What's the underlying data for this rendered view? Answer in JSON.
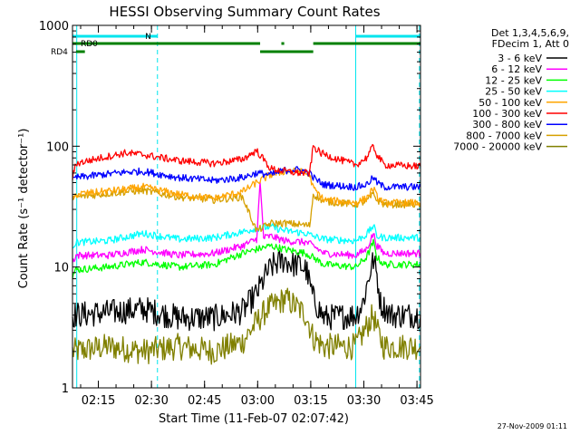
{
  "chart_data": {
    "type": "line",
    "title": "HESSI Observing Summary Count Rates",
    "xlabel": "Start Time (11-Feb-07 02:07:42)",
    "ylabel": "Count Rate (s⁻¹ detector⁻¹)",
    "yscale": "log",
    "ylim": [
      1,
      1000
    ],
    "y_ticks": [
      {
        "value": 1,
        "label": "1"
      },
      {
        "value": 10,
        "label": "10"
      },
      {
        "value": 100,
        "label": "100"
      },
      {
        "value": 1000,
        "label": "1000"
      }
    ],
    "x_ticks_minutes": [
      7.3,
      22.3,
      37.3,
      52.3,
      67.3,
      82.3,
      97.3
    ],
    "x_tick_labels": [
      "02:15",
      "02:30",
      "02:45",
      "03:00",
      "03:15",
      "03:30",
      "03:45"
    ],
    "xlim_minutes": [
      0,
      98.3
    ],
    "grid": false,
    "legend_position": "right",
    "legend_header": [
      "Det 1,3,4,5,6,9,",
      "FDecim 1, Att 0"
    ],
    "timestamp": "27-Nov-2009 01:11",
    "flag_labels": [
      "RD0",
      "RD4",
      "N"
    ],
    "series": [
      {
        "name": "3 - 6 keV",
        "color": "#000000",
        "points": [
          [
            0,
            4.0
          ],
          [
            10,
            4.2
          ],
          [
            20,
            4.5
          ],
          [
            30,
            3.8
          ],
          [
            40,
            3.8
          ],
          [
            48,
            4.3
          ],
          [
            52,
            6.0
          ],
          [
            55,
            9.0
          ],
          [
            57,
            10.5
          ],
          [
            58.5,
            11.0
          ],
          [
            60,
            11.5
          ],
          [
            62,
            10.5
          ],
          [
            64,
            10.5
          ],
          [
            66,
            9.5
          ],
          [
            68,
            5.5
          ],
          [
            71,
            3.8
          ],
          [
            80,
            4.0
          ],
          [
            82,
            5.0
          ],
          [
            84,
            9.0
          ],
          [
            85,
            11.5
          ],
          [
            86,
            8.5
          ],
          [
            87,
            5.0
          ],
          [
            90,
            4.0
          ],
          [
            98.3,
            4.0
          ]
        ]
      },
      {
        "name": "6 - 12 keV",
        "color": "#ff00ff",
        "points": [
          [
            0,
            11.0
          ],
          [
            1,
            12.5
          ],
          [
            10,
            12.5
          ],
          [
            20,
            14.0
          ],
          [
            30,
            12.5
          ],
          [
            40,
            13.0
          ],
          [
            48,
            15.0
          ],
          [
            52,
            17.0
          ],
          [
            53,
            50.0
          ],
          [
            54,
            17.5
          ],
          [
            56,
            18.0
          ],
          [
            60,
            16.5
          ],
          [
            66,
            16.0
          ],
          [
            68,
            15.0
          ],
          [
            71,
            13.0
          ],
          [
            80,
            12.5
          ],
          [
            83,
            14.0
          ],
          [
            85,
            19.0
          ],
          [
            86,
            15.0
          ],
          [
            88,
            13.0
          ],
          [
            98.3,
            13.0
          ]
        ]
      },
      {
        "name": "12 - 25 keV",
        "color": "#00ff00",
        "points": [
          [
            0,
            8.5
          ],
          [
            1,
            9.5
          ],
          [
            10,
            10.0
          ],
          [
            20,
            11.0
          ],
          [
            30,
            10.0
          ],
          [
            40,
            10.5
          ],
          [
            48,
            13.0
          ],
          [
            52,
            14.0
          ],
          [
            56,
            15.0
          ],
          [
            60,
            14.0
          ],
          [
            66,
            13.0
          ],
          [
            68,
            12.0
          ],
          [
            71,
            10.5
          ],
          [
            80,
            10.0
          ],
          [
            83,
            12.0
          ],
          [
            85,
            16.0
          ],
          [
            86,
            12.0
          ],
          [
            88,
            10.5
          ],
          [
            98.3,
            10.5
          ]
        ]
      },
      {
        "name": "25 - 50 keV",
        "color": "#00ffff",
        "points": [
          [
            0,
            15.0
          ],
          [
            1,
            16.0
          ],
          [
            10,
            16.5
          ],
          [
            20,
            19.0
          ],
          [
            30,
            17.0
          ],
          [
            40,
            17.5
          ],
          [
            48,
            19.5
          ],
          [
            52,
            21.0
          ],
          [
            56,
            21.5
          ],
          [
            60,
            20.0
          ],
          [
            66,
            19.0
          ],
          [
            68,
            18.0
          ],
          [
            71,
            17.0
          ],
          [
            80,
            16.5
          ],
          [
            83,
            18.5
          ],
          [
            85,
            22.0
          ],
          [
            86,
            18.0
          ],
          [
            88,
            17.5
          ],
          [
            98.3,
            17.5
          ]
        ]
      },
      {
        "name": "50 - 100 keV",
        "color": "#ffa500",
        "points": [
          [
            0,
            35.0
          ],
          [
            1,
            40.0
          ],
          [
            8,
            42.0
          ],
          [
            15,
            44.0
          ],
          [
            20,
            46.0
          ],
          [
            30,
            40.0
          ],
          [
            40,
            37.0
          ],
          [
            48,
            42.0
          ],
          [
            52,
            50.0
          ],
          [
            56,
            58.0
          ],
          [
            60,
            62.0
          ],
          [
            64,
            62.0
          ],
          [
            67,
            58.0
          ],
          [
            68,
            45.0
          ],
          [
            71,
            36.0
          ],
          [
            80,
            34.0
          ],
          [
            83,
            37.0
          ],
          [
            85,
            45.0
          ],
          [
            86,
            38.0
          ],
          [
            88,
            34.0
          ],
          [
            98.3,
            34.0
          ]
        ]
      },
      {
        "name": "100 - 300 keV",
        "color": "#ff0000",
        "points": [
          [
            0,
            55.0
          ],
          [
            1,
            72.0
          ],
          [
            8,
            80.0
          ],
          [
            15,
            88.0
          ],
          [
            20,
            85.0
          ],
          [
            30,
            76.0
          ],
          [
            40,
            72.0
          ],
          [
            48,
            78.0
          ],
          [
            52,
            92.0
          ],
          [
            56,
            65.0
          ],
          [
            60,
            62.0
          ],
          [
            64,
            60.0
          ],
          [
            67,
            60.0
          ],
          [
            68,
            100.0
          ],
          [
            70,
            88.0
          ],
          [
            75,
            78.0
          ],
          [
            80,
            70.0
          ],
          [
            83,
            80.0
          ],
          [
            85,
            100.0
          ],
          [
            86,
            85.0
          ],
          [
            88,
            70.0
          ],
          [
            98.3,
            68.0
          ]
        ]
      },
      {
        "name": "300 - 800 keV",
        "color": "#0000ff",
        "points": [
          [
            0,
            52.0
          ],
          [
            1,
            55.0
          ],
          [
            8,
            58.0
          ],
          [
            15,
            61.0
          ],
          [
            20,
            62.0
          ],
          [
            30,
            55.0
          ],
          [
            40,
            52.0
          ],
          [
            48,
            55.0
          ],
          [
            52,
            60.0
          ],
          [
            56,
            58.0
          ],
          [
            60,
            63.0
          ],
          [
            64,
            64.0
          ],
          [
            67,
            60.0
          ],
          [
            68,
            55.0
          ],
          [
            71,
            48.0
          ],
          [
            80,
            46.0
          ],
          [
            83,
            48.0
          ],
          [
            85,
            55.0
          ],
          [
            86,
            50.0
          ],
          [
            88,
            46.0
          ],
          [
            98.3,
            46.0
          ]
        ]
      },
      {
        "name": "800 - 7000 keV",
        "color": "#d6a000",
        "points": [
          [
            0,
            35.0
          ],
          [
            1,
            38.0
          ],
          [
            8,
            40.0
          ],
          [
            15,
            42.0
          ],
          [
            20,
            43.0
          ],
          [
            30,
            38.0
          ],
          [
            40,
            36.0
          ],
          [
            48,
            38.0
          ],
          [
            52,
            20.0
          ],
          [
            56,
            23.0
          ],
          [
            60,
            23.0
          ],
          [
            64,
            22.5
          ],
          [
            67,
            22.0
          ],
          [
            68,
            40.0
          ],
          [
            71,
            35.0
          ],
          [
            80,
            33.0
          ],
          [
            83,
            35.0
          ],
          [
            85,
            40.0
          ],
          [
            86,
            36.0
          ],
          [
            88,
            33.0
          ],
          [
            98.3,
            33.0
          ]
        ]
      },
      {
        "name": "7000 - 20000 keV",
        "color": "#808000",
        "points": [
          [
            0,
            2.0
          ],
          [
            10,
            2.2
          ],
          [
            20,
            2.0
          ],
          [
            30,
            2.2
          ],
          [
            40,
            2.0
          ],
          [
            48,
            2.4
          ],
          [
            52,
            3.5
          ],
          [
            55,
            4.5
          ],
          [
            58,
            5.0
          ],
          [
            60,
            5.5
          ],
          [
            62,
            5.0
          ],
          [
            64,
            4.5
          ],
          [
            66,
            4.0
          ],
          [
            68,
            2.6
          ],
          [
            71,
            2.2
          ],
          [
            80,
            2.2
          ],
          [
            82,
            2.8
          ],
          [
            84,
            3.6
          ],
          [
            85,
            4.0
          ],
          [
            86,
            3.0
          ],
          [
            88,
            2.2
          ],
          [
            98.3,
            2.2
          ]
        ]
      }
    ]
  }
}
